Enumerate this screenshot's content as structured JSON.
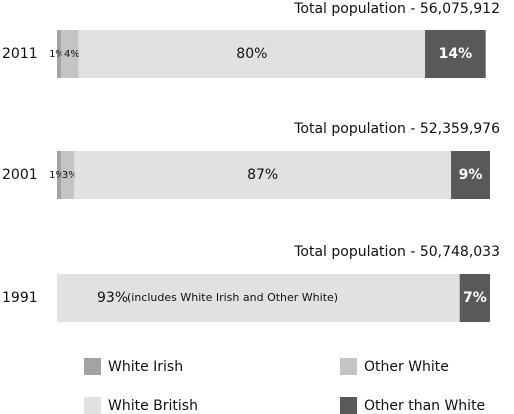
{
  "chart_data": {
    "type": "stacked-bar-horizontal",
    "categories": [
      "2011",
      "2001",
      "1991"
    ],
    "series": [
      {
        "name": "White Irish",
        "color": "#a3a3a3",
        "values": [
          1,
          1,
          null
        ],
        "value_labels": [
          "1%",
          "1%",
          null
        ]
      },
      {
        "name": "Other White",
        "color": "#c4c4c4",
        "values": [
          4,
          3,
          null
        ],
        "value_labels": [
          "4%",
          "3%",
          null
        ]
      },
      {
        "name": "White British",
        "color": "#e1e1e1",
        "values": [
          80,
          87,
          93
        ],
        "value_labels": [
          "80%",
          "87%",
          "93%"
        ]
      },
      {
        "name": "Other than White",
        "color": "#595959",
        "values": [
          14,
          9,
          7
        ],
        "value_labels": [
          "14%",
          "9%",
          "7%"
        ]
      }
    ],
    "annotations": [
      "Total population -  56,075,912",
      "Total population -  52,359,976",
      "Total population -  50,748,033"
    ],
    "note": "(includes White Irish and Other White)",
    "xlim": [
      0,
      100
    ]
  }
}
